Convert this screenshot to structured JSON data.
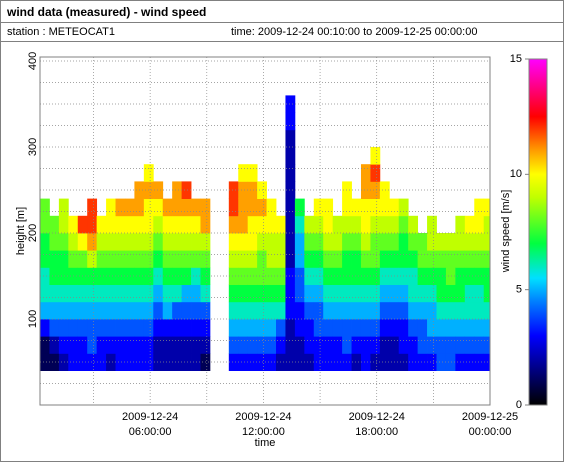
{
  "chart_data": {
    "type": "heatmap",
    "title": "wind data (measured) - wind speed",
    "station": "station : METEOCAT1",
    "period": "time: 2009-12-24 00:10:00 to 2009-12-25 00:00:00",
    "xlabel": "time",
    "ylabel": "height [m]",
    "zlabel": "wind speed [m/s]",
    "xlim": [
      "2009-12-24 00:10:00",
      "2009-12-25 00:00:00"
    ],
    "xticks": [
      "2009-12-24 06:00:00",
      "2009-12-24 12:00:00",
      "2009-12-24 18:00:00",
      "2009-12-25 00:00:00"
    ],
    "xminorticks": [
      "2009-12-24 03:00:00",
      "2009-12-24 09:00:00",
      "2009-12-24 15:00:00",
      "2009-12-24 21:00:00"
    ],
    "ylim": [
      0,
      400
    ],
    "yticks": [
      100,
      200,
      300,
      400
    ],
    "yminorticks": [
      25,
      50,
      75,
      125,
      150,
      175,
      225,
      250,
      275,
      325,
      350,
      375
    ],
    "zlim": [
      0,
      15
    ],
    "zticks": [
      0,
      5,
      10,
      15
    ],
    "colorscale": [
      [
        0,
        "#000000"
      ],
      [
        1.5,
        "#00007f"
      ],
      [
        3,
        "#0000ff"
      ],
      [
        4.5,
        "#0080ff"
      ],
      [
        5.5,
        "#00e0ff"
      ],
      [
        7,
        "#00ff40"
      ],
      [
        9,
        "#c0ff00"
      ],
      [
        10,
        "#ffff00"
      ],
      [
        11,
        "#ffa000"
      ],
      [
        12.5,
        "#ff0000"
      ],
      [
        15,
        "#ff00ff"
      ]
    ],
    "grid": true,
    "x": [
      "2009-12-24 00:10:00",
      "2009-12-24 00:40:00",
      "2009-12-24 01:10:00",
      "2009-12-24 01:40:00",
      "2009-12-24 02:10:00",
      "2009-12-24 02:40:00",
      "2009-12-24 03:10:00",
      "2009-12-24 03:40:00",
      "2009-12-24 04:10:00",
      "2009-12-24 04:40:00",
      "2009-12-24 05:10:00",
      "2009-12-24 05:40:00",
      "2009-12-24 06:10:00",
      "2009-12-24 06:40:00",
      "2009-12-24 07:10:00",
      "2009-12-24 07:40:00",
      "2009-12-24 08:10:00",
      "2009-12-24 08:40:00",
      "2009-12-24 09:10:00",
      "2009-12-24 09:40:00",
      "2009-12-24 10:10:00",
      "2009-12-24 10:40:00",
      "2009-12-24 11:10:00",
      "2009-12-24 11:40:00",
      "2009-12-24 12:10:00",
      "2009-12-24 12:40:00",
      "2009-12-24 13:10:00",
      "2009-12-24 13:40:00",
      "2009-12-24 14:10:00",
      "2009-12-24 14:40:00",
      "2009-12-24 15:10:00",
      "2009-12-24 15:40:00",
      "2009-12-24 16:10:00",
      "2009-12-24 16:40:00",
      "2009-12-24 17:10:00",
      "2009-12-24 17:40:00",
      "2009-12-24 18:10:00",
      "2009-12-24 18:40:00",
      "2009-12-24 19:10:00",
      "2009-12-24 19:40:00",
      "2009-12-24 20:10:00",
      "2009-12-24 20:40:00",
      "2009-12-24 21:10:00",
      "2009-12-24 21:40:00",
      "2009-12-24 22:10:00",
      "2009-12-24 22:40:00",
      "2009-12-24 23:10:00",
      "2009-12-24 23:40:00"
    ],
    "y": [
      40,
      60,
      80,
      100,
      120,
      140,
      160,
      180,
      200,
      220,
      240,
      260,
      280,
      300,
      320,
      340,
      360
    ],
    "values": [
      [
        1,
        1,
        3,
        5,
        6,
        6,
        7,
        7,
        8,
        8,
        null,
        null,
        null,
        null,
        null,
        null,
        null
      ],
      [
        1,
        2,
        4,
        5,
        6,
        7,
        7,
        8,
        8,
        null,
        null,
        null,
        null,
        null,
        null,
        null,
        null
      ],
      [
        2,
        3,
        4,
        5,
        6,
        7,
        7,
        8,
        9,
        9,
        null,
        null,
        null,
        null,
        null,
        null,
        null
      ],
      [
        3,
        3,
        4,
        5,
        6,
        7,
        8,
        9,
        10,
        null,
        null,
        null,
        null,
        null,
        null,
        null,
        null
      ],
      [
        3,
        3,
        4,
        5,
        6,
        7,
        8,
        10,
        12,
        null,
        null,
        null,
        null,
        null,
        null,
        null,
        null
      ],
      [
        3,
        4,
        4,
        5,
        6,
        7,
        9,
        11,
        12,
        12,
        null,
        null,
        null,
        null,
        null,
        null,
        null
      ],
      [
        3,
        3,
        4,
        5,
        6,
        7,
        8,
        9,
        10,
        null,
        null,
        null,
        null,
        null,
        null,
        null,
        null
      ],
      [
        2,
        3,
        4,
        5,
        6,
        7,
        8,
        9,
        10,
        10,
        null,
        null,
        null,
        null,
        null,
        null,
        null
      ],
      [
        3,
        3,
        4,
        5,
        6,
        7,
        8,
        9,
        10,
        11,
        null,
        null,
        null,
        null,
        null,
        null,
        null
      ],
      [
        3,
        3,
        4,
        5,
        6,
        7,
        8,
        9,
        10,
        11,
        null,
        null,
        null,
        null,
        null,
        null,
        null
      ],
      [
        3,
        3,
        4,
        5,
        6,
        7,
        8,
        9,
        10,
        11,
        11,
        null,
        null,
        null,
        null,
        null,
        null
      ],
      [
        3,
        3,
        4,
        5,
        6,
        7,
        8,
        9,
        10,
        10,
        11,
        10,
        null,
        null,
        null,
        null,
        null
      ],
      [
        2,
        2,
        3,
        4,
        5,
        6,
        7,
        8,
        9,
        10,
        11,
        null,
        null,
        null,
        null,
        null,
        null
      ],
      [
        2,
        2,
        3,
        5,
        6,
        7,
        8,
        9,
        10,
        11,
        null,
        null,
        null,
        null,
        null,
        null,
        null
      ],
      [
        2,
        2,
        3,
        4,
        6,
        7,
        8,
        9,
        10,
        11,
        11,
        null,
        null,
        null,
        null,
        null,
        null
      ],
      [
        2,
        2,
        3,
        4,
        5,
        7,
        8,
        9,
        10,
        11,
        12,
        null,
        null,
        null,
        null,
        null,
        null
      ],
      [
        2,
        2,
        3,
        4,
        5,
        6,
        8,
        9,
        10,
        11,
        null,
        null,
        null,
        null,
        null,
        null,
        null
      ],
      [
        1,
        2,
        3,
        4,
        6,
        7,
        8,
        9,
        11,
        11,
        null,
        null,
        null,
        null,
        null,
        null,
        null
      ],
      [
        null,
        null,
        null,
        null,
        null,
        null,
        null,
        null,
        null,
        null,
        null,
        null,
        null,
        null,
        null,
        null,
        null
      ],
      [
        null,
        null,
        null,
        null,
        null,
        null,
        null,
        null,
        null,
        null,
        null,
        null,
        null,
        null,
        null,
        null,
        null
      ],
      [
        3,
        4,
        5,
        6,
        7,
        8,
        9,
        10,
        11,
        12,
        12,
        null,
        null,
        null,
        null,
        null,
        null
      ],
      [
        3,
        4,
        5,
        6,
        7,
        8,
        9,
        10,
        11,
        11,
        11,
        10,
        null,
        null,
        null,
        null,
        null
      ],
      [
        3,
        4,
        5,
        6,
        7,
        8,
        9,
        10,
        10,
        11,
        11,
        10,
        null,
        null,
        null,
        null,
        null
      ],
      [
        3,
        4,
        5,
        6,
        7,
        8,
        8,
        9,
        10,
        11,
        10,
        null,
        null,
        null,
        null,
        null,
        null
      ],
      [
        3,
        4,
        5,
        6,
        7,
        8,
        9,
        9,
        10,
        10,
        null,
        null,
        null,
        null,
        null,
        null,
        null
      ],
      [
        2,
        3,
        4,
        6,
        7,
        8,
        9,
        9,
        10,
        null,
        null,
        null,
        null,
        null,
        null,
        null,
        null
      ],
      [
        2,
        2,
        2,
        3,
        3,
        3,
        2,
        2,
        2,
        2,
        2,
        2,
        2,
        2,
        3,
        3,
        null
      ],
      [
        2,
        2,
        3,
        3,
        4,
        4,
        5,
        5,
        6,
        7,
        null,
        null,
        null,
        null,
        null,
        null,
        null
      ],
      [
        2,
        3,
        3,
        4,
        5,
        6,
        7,
        8,
        9,
        null,
        null,
        null,
        null,
        null,
        null,
        null,
        null
      ],
      [
        3,
        3,
        4,
        4,
        5,
        6,
        7,
        8,
        9,
        10,
        null,
        null,
        null,
        null,
        null,
        null,
        null
      ],
      [
        3,
        3,
        4,
        5,
        6,
        7,
        8,
        9,
        10,
        10,
        null,
        null,
        null,
        null,
        null,
        null,
        null
      ],
      [
        3,
        3,
        4,
        5,
        6,
        7,
        8,
        9,
        9,
        null,
        null,
        null,
        null,
        null,
        null,
        null,
        null
      ],
      [
        3,
        4,
        4,
        5,
        6,
        7,
        7,
        8,
        9,
        10,
        10,
        null,
        null,
        null,
        null,
        null,
        null
      ],
      [
        2,
        3,
        4,
        5,
        6,
        7,
        7,
        8,
        9,
        10,
        null,
        null,
        null,
        null,
        null,
        null,
        null
      ],
      [
        3,
        3,
        4,
        5,
        6,
        7,
        8,
        9,
        10,
        10,
        11,
        11,
        null,
        null,
        null,
        null,
        null
      ],
      [
        2,
        3,
        4,
        5,
        6,
        7,
        8,
        8,
        9,
        10,
        11,
        12,
        10,
        null,
        null,
        null,
        null
      ],
      [
        2,
        2,
        3,
        4,
        5,
        6,
        7,
        8,
        9,
        10,
        10,
        null,
        null,
        null,
        null,
        null,
        null
      ],
      [
        2,
        2,
        3,
        4,
        5,
        6,
        7,
        8,
        9,
        10,
        null,
        null,
        null,
        null,
        null,
        null,
        null
      ],
      [
        2,
        3,
        3,
        4,
        5,
        6,
        7,
        7,
        8,
        9,
        null,
        null,
        null,
        null,
        null,
        null,
        null
      ],
      [
        3,
        3,
        4,
        5,
        6,
        6,
        7,
        8,
        9,
        null,
        null,
        null,
        null,
        null,
        null,
        null,
        null
      ],
      [
        3,
        4,
        4,
        5,
        6,
        7,
        8,
        8,
        null,
        null,
        null,
        null,
        null,
        null,
        null,
        null,
        null
      ],
      [
        3,
        4,
        5,
        5,
        6,
        7,
        8,
        9,
        9,
        null,
        null,
        null,
        null,
        null,
        null,
        null,
        null
      ],
      [
        4,
        4,
        5,
        6,
        7,
        7,
        8,
        9,
        null,
        null,
        null,
        null,
        null,
        null,
        null,
        null,
        null
      ],
      [
        4,
        4,
        5,
        6,
        7,
        8,
        8,
        9,
        null,
        null,
        null,
        null,
        null,
        null,
        null,
        null,
        null
      ],
      [
        3,
        4,
        5,
        6,
        7,
        7,
        8,
        9,
        9,
        null,
        null,
        null,
        null,
        null,
        null,
        null,
        null
      ],
      [
        3,
        4,
        5,
        6,
        6,
        7,
        8,
        9,
        10,
        null,
        null,
        null,
        null,
        null,
        null,
        null,
        null
      ],
      [
        3,
        4,
        5,
        6,
        6,
        7,
        8,
        9,
        10,
        10,
        null,
        null,
        null,
        null,
        null,
        null,
        null
      ],
      [
        3,
        4,
        5,
        6,
        7,
        7,
        8,
        9,
        9,
        10,
        null,
        null,
        null,
        null,
        null,
        null,
        null
      ]
    ]
  }
}
